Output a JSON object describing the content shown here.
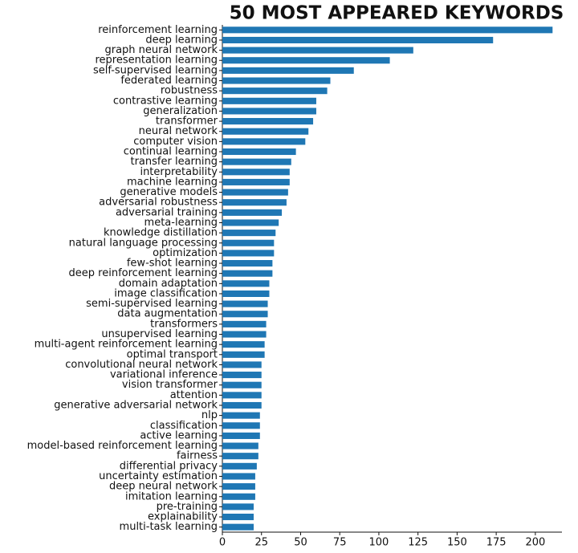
{
  "chart_data": {
    "type": "barh",
    "title": "50 MOST APPEARED KEYWORDS",
    "categories": [
      "reinforcement learning",
      "deep learning",
      "graph neural network",
      "representation learning",
      "self-supervised learning",
      "federated learning",
      "robustness",
      "contrastive learning",
      "generalization",
      "transformer",
      "neural network",
      "computer vision",
      "continual learning",
      "transfer learning",
      "interpretability",
      "machine learning",
      "generative models",
      "adversarial robustness",
      "adversarial training",
      "meta-learning",
      "knowledge distillation",
      "natural language processing",
      "optimization",
      "few-shot learning",
      "deep reinforcement learning",
      "domain adaptation",
      "image classification",
      "semi-supervised learning",
      "data augmentation",
      "transformers",
      "unsupervised learning",
      "multi-agent reinforcement learning",
      "optimal transport",
      "convolutional neural network",
      "variational inference",
      "vision transformer",
      "attention",
      "generative adversarial network",
      "nlp",
      "classification",
      "active learning",
      "model-based reinforcement learning",
      "fairness",
      "differential privacy",
      "uncertainty estimation",
      "deep neural network",
      "imitation learning",
      "pre-training",
      "explainability",
      "multi-task learning"
    ],
    "values": [
      211,
      173,
      122,
      107,
      84,
      69,
      67,
      60,
      60,
      58,
      55,
      53,
      47,
      44,
      43,
      43,
      42,
      41,
      38,
      36,
      34,
      33,
      33,
      32,
      32,
      30,
      30,
      29,
      29,
      28,
      28,
      27,
      27,
      25,
      25,
      25,
      25,
      25,
      24,
      24,
      24,
      23,
      23,
      22,
      21,
      21,
      21,
      20,
      20,
      20
    ],
    "color": "#1f77b4",
    "xlim": [
      0,
      217
    ],
    "xticks": [
      0,
      25,
      50,
      75,
      100,
      125,
      150,
      175,
      200
    ],
    "grid": false
  }
}
